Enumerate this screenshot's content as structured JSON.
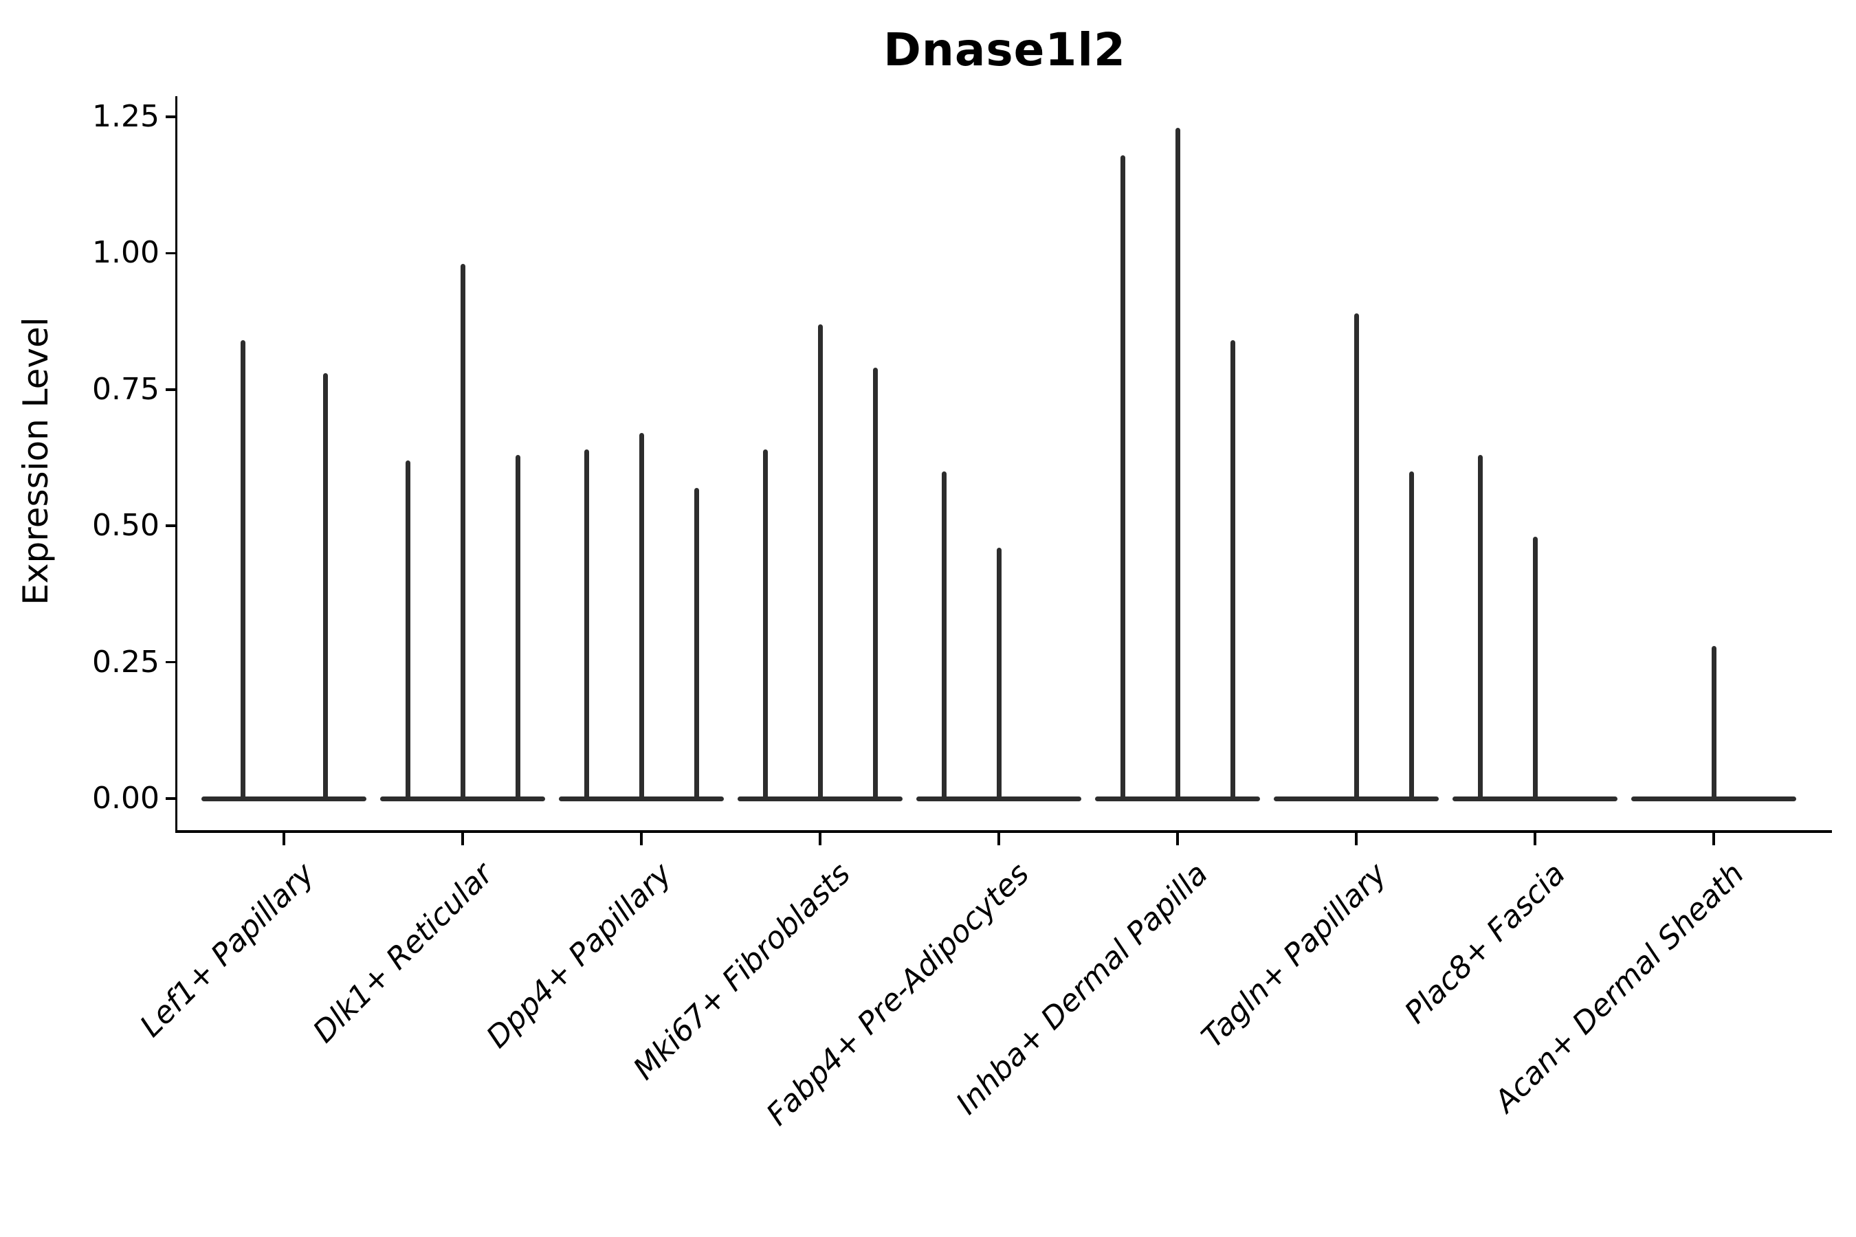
{
  "chart_data": {
    "type": "violin",
    "title": "Dnase1l2",
    "ylabel": "Expression Level",
    "xlabel": "",
    "ytick_values": [
      0.0,
      0.25,
      0.5,
      0.75,
      1.0,
      1.25
    ],
    "ytick_labels": [
      "0.00",
      "0.25",
      "0.50",
      "0.75",
      "1.00",
      "1.25"
    ],
    "ylim": [
      -0.06,
      1.29
    ],
    "grid": "off",
    "legend": "none",
    "categories": [
      "Lef1+ Papillary",
      "Dlk1+ Reticular",
      "Dpp4+ Papillary",
      "Mki67+ Fibroblasts",
      "Fabp4+ Pre-Adipocytes",
      "Inhba+ Dermal Papilla",
      "Tagln+ Papillary",
      "Plac8+ Fascia",
      "Acan+ Dermal Sheath"
    ],
    "groups": [
      {
        "category": "Lef1+ Papillary",
        "violins": [
          {
            "offset": -60,
            "max": 0.84
          },
          {
            "offset": 60,
            "max": 0.78
          }
        ]
      },
      {
        "category": "Dlk1+ Reticular",
        "violins": [
          {
            "offset": -80,
            "max": 0.62
          },
          {
            "offset": 0,
            "max": 0.98
          },
          {
            "offset": 80,
            "max": 0.63
          }
        ]
      },
      {
        "category": "Dpp4+ Papillary",
        "violins": [
          {
            "offset": -80,
            "max": 0.64
          },
          {
            "offset": 0,
            "max": 0.67
          },
          {
            "offset": 80,
            "max": 0.57
          }
        ]
      },
      {
        "category": "Mki67+ Fibroblasts",
        "violins": [
          {
            "offset": -80,
            "max": 0.64
          },
          {
            "offset": 0,
            "max": 0.87
          },
          {
            "offset": 80,
            "max": 0.79
          }
        ]
      },
      {
        "category": "Fabp4+ Pre-Adipocytes",
        "violins": [
          {
            "offset": -80,
            "max": 0.6
          },
          {
            "offset": 0,
            "max": 0.46
          }
        ]
      },
      {
        "category": "Inhba+ Dermal Papilla",
        "violins": [
          {
            "offset": -80,
            "max": 1.18
          },
          {
            "offset": 0,
            "max": 1.23
          },
          {
            "offset": 80,
            "max": 0.84
          }
        ]
      },
      {
        "category": "Tagln+ Papillary",
        "violins": [
          {
            "offset": 0,
            "max": 0.89
          },
          {
            "offset": 80,
            "max": 0.6
          }
        ]
      },
      {
        "category": "Plac8+ Fascia",
        "violins": [
          {
            "offset": -80,
            "max": 0.63
          },
          {
            "offset": 0,
            "max": 0.48
          }
        ]
      },
      {
        "category": "Acan+ Dermal Sheath",
        "violins": [
          {
            "offset": 0,
            "max": 0.28
          }
        ]
      }
    ],
    "colors": {
      "violin_line": "#2d2d2d",
      "axis": "#000000",
      "text": "#000000",
      "background": "#ffffff"
    }
  }
}
